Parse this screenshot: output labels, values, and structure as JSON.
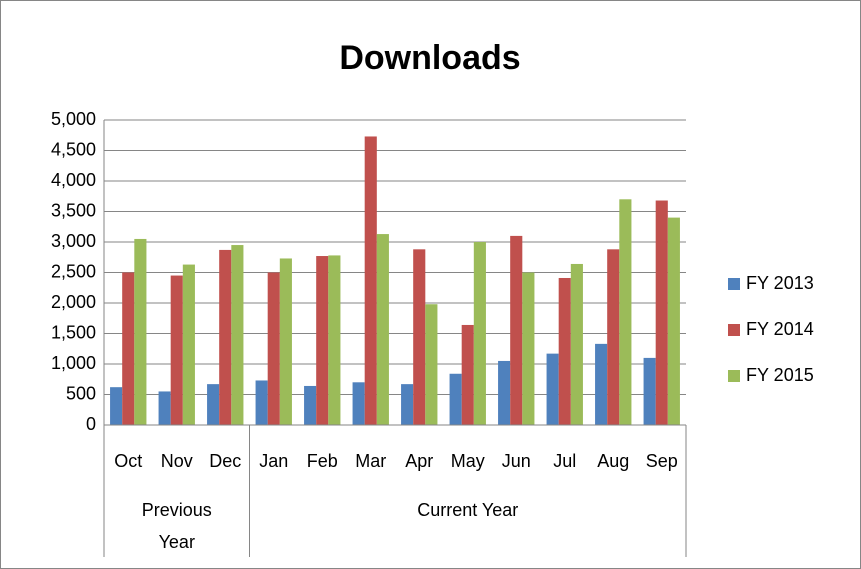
{
  "chart_data": {
    "type": "bar",
    "title": "Downloads",
    "groups": [
      {
        "label": "Previous Year",
        "categories": [
          "Oct",
          "Nov",
          "Dec"
        ]
      },
      {
        "label": "Current Year",
        "categories": [
          "Jan",
          "Feb",
          "Mar",
          "Apr",
          "May",
          "Jun",
          "Jul",
          "Aug",
          "Sep"
        ]
      }
    ],
    "series": [
      {
        "name": "FY 2013",
        "color": "#4f81bd",
        "values": [
          620,
          550,
          670,
          730,
          640,
          700,
          670,
          840,
          1050,
          1170,
          1330,
          1100
        ]
      },
      {
        "name": "FY 2014",
        "color": "#c0504d",
        "values": [
          2500,
          2450,
          2870,
          2500,
          2770,
          4730,
          2880,
          1640,
          3100,
          2410,
          2880,
          3680
        ]
      },
      {
        "name": "FY 2015",
        "color": "#9bbb59",
        "values": [
          3050,
          2630,
          2950,
          2730,
          2780,
          3130,
          1980,
          3000,
          2500,
          2640,
          3700,
          3400
        ]
      }
    ],
    "ylim": [
      0,
      5000
    ],
    "yticks": [
      0,
      500,
      {
        "value": 1000,
        "label": "1,000"
      },
      {
        "value": 1500,
        "label": "1,500"
      },
      {
        "value": 2000,
        "label": "2,000"
      },
      {
        "value": 2500,
        "label": "2,500"
      },
      {
        "value": 3000,
        "label": "3,000"
      },
      {
        "value": 3500,
        "label": "3,500"
      },
      {
        "value": 4000,
        "label": "4,000"
      },
      {
        "value": 4500,
        "label": "4,500"
      },
      {
        "value": 5000,
        "label": "5,000"
      }
    ],
    "grid": true,
    "legend": "right"
  }
}
